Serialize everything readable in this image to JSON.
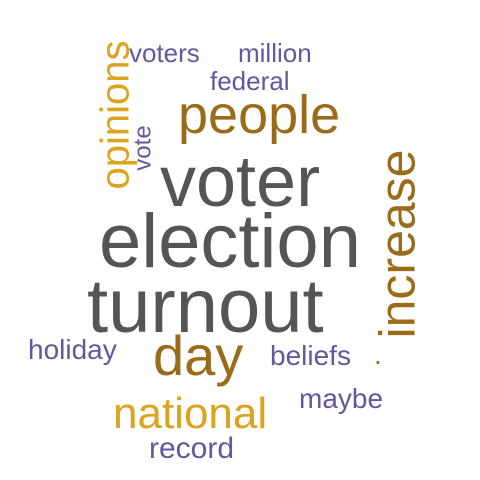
{
  "words": [
    {
      "text": "voters",
      "color": "purple"
    },
    {
      "text": "million",
      "color": "purple"
    },
    {
      "text": "federal",
      "color": "purple"
    },
    {
      "text": "opinions",
      "color": "gold"
    },
    {
      "text": "people",
      "color": "brown"
    },
    {
      "text": "vote",
      "color": "purple"
    },
    {
      "text": "voter",
      "color": "grey"
    },
    {
      "text": "increase",
      "color": "brown"
    },
    {
      "text": "election",
      "color": "grey"
    },
    {
      "text": "turnout",
      "color": "grey"
    },
    {
      "text": "holiday",
      "color": "purple"
    },
    {
      "text": "day",
      "color": "brown"
    },
    {
      "text": "beliefs",
      "color": "purple"
    },
    {
      "text": ".",
      "color": "brown"
    },
    {
      "text": "national",
      "color": "gold"
    },
    {
      "text": "maybe",
      "color": "purple"
    },
    {
      "text": "record",
      "color": "purple"
    }
  ],
  "palette": {
    "grey": "#555555",
    "gold": "#dca41e",
    "brown": "#9a6c1a",
    "purple": "#65579f"
  }
}
